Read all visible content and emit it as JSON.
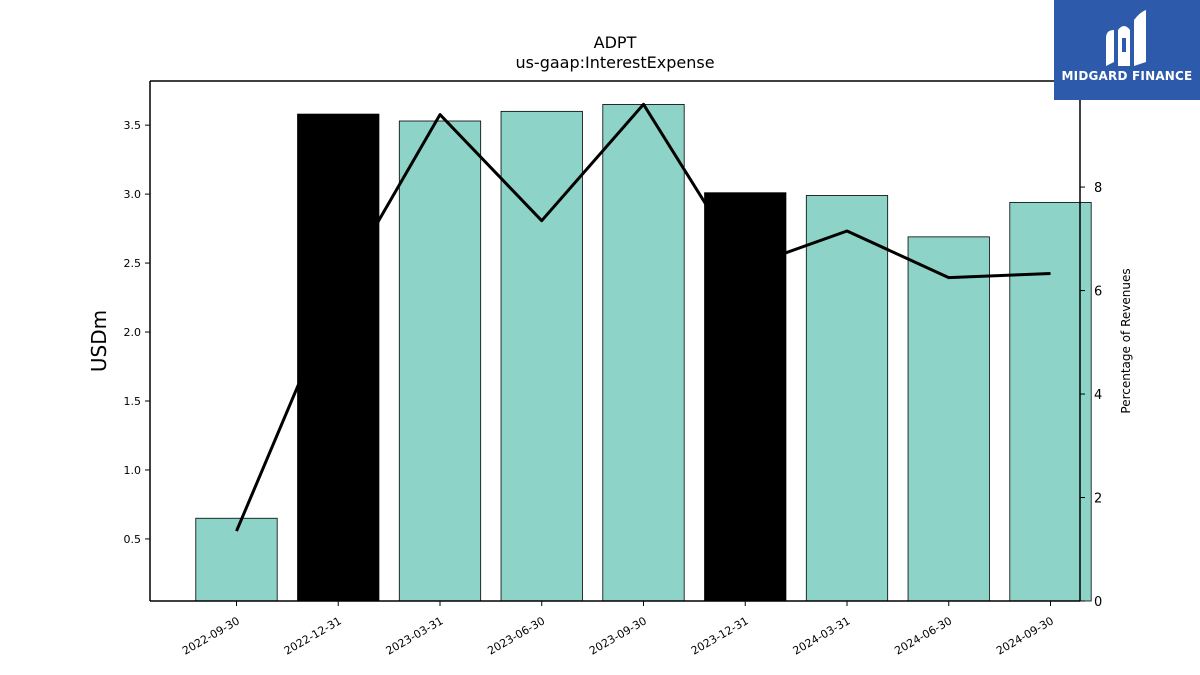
{
  "chart_data": {
    "type": "bar",
    "title": "ADPT",
    "subtitle": "us-gaap:InterestExpense",
    "ylabel": "USDm",
    "y2label": "Percentage of Revenues",
    "categories": [
      "2022-09-30",
      "2022-12-31",
      "2023-03-31",
      "2023-06-30",
      "2023-09-30",
      "2023-12-31",
      "2024-03-31",
      "2024-06-30",
      "2024-09-30"
    ],
    "series": [
      {
        "type": "bar",
        "axis": "left",
        "values": [
          0.65,
          3.58,
          3.53,
          3.6,
          3.65,
          3.01,
          2.99,
          2.69,
          2.94
        ],
        "colors": [
          "#8dd3c7",
          "#000000",
          "#8dd3c7",
          "#8dd3c7",
          "#8dd3c7",
          "#000000",
          "#8dd3c7",
          "#8dd3c7",
          "#8dd3c7"
        ]
      },
      {
        "type": "line",
        "axis": "right",
        "color": "#000000",
        "values": [
          1.35,
          6.0,
          9.4,
          7.35,
          9.6,
          6.45,
          7.15,
          6.25,
          6.33
        ]
      }
    ],
    "ylim": [
      0.05,
      3.82
    ],
    "y_ticks": [
      0.5,
      1.0,
      1.5,
      2.0,
      2.5,
      3.0,
      3.5
    ],
    "y_tick_labels": [
      "0.5",
      "1.0",
      "1.5",
      "2.0",
      "2.5",
      "3.0",
      "3.5"
    ],
    "y2lim": [
      0,
      10.05
    ],
    "y2_ticks": [
      0,
      2,
      4,
      6,
      8
    ],
    "y2_tick_labels": [
      "0",
      "2",
      "4",
      "6",
      "8"
    ],
    "grid": false
  },
  "logo": {
    "text": "MIDGARD FINANCE",
    "color": "#2e5aac"
  }
}
